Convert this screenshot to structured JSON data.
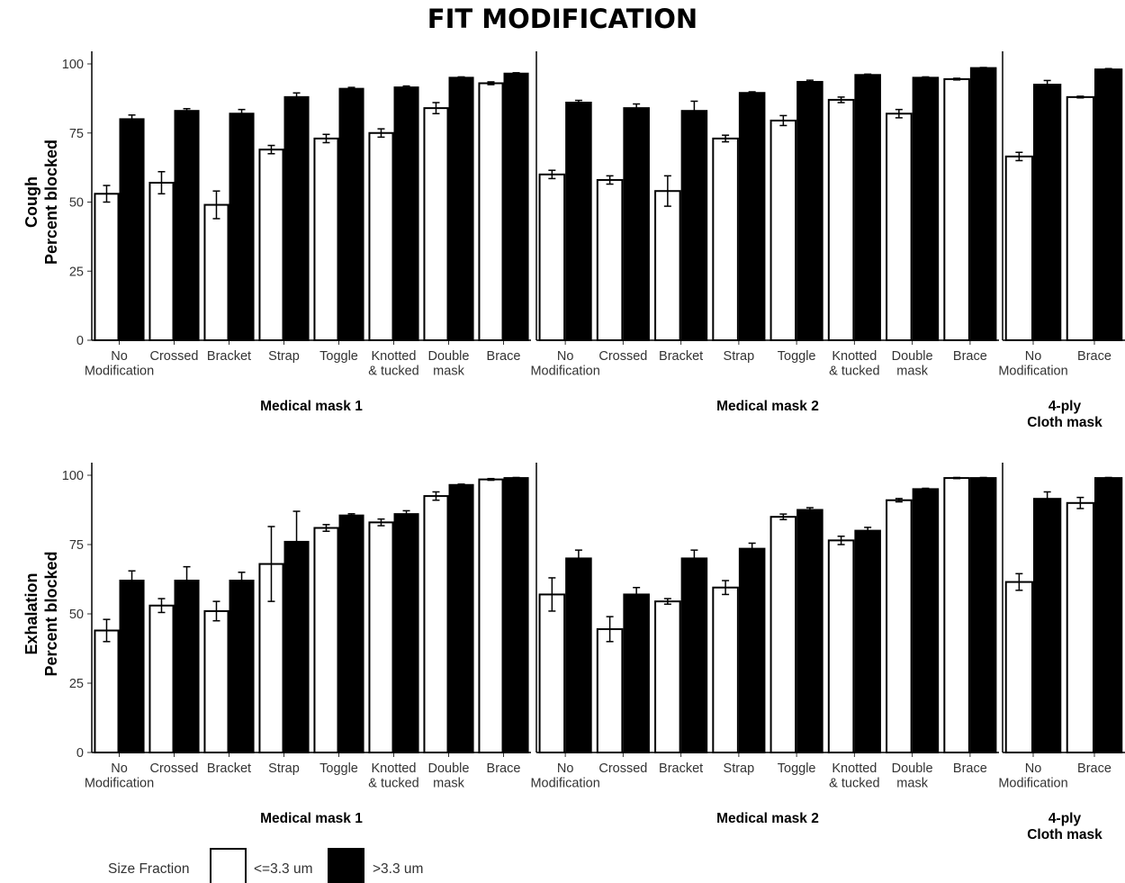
{
  "title": "FIT MODIFICATION",
  "legend": {
    "title": "Size Fraction",
    "items": [
      {
        "label": "<=3.3 um",
        "color": "#ffffff"
      },
      {
        "label": ">3.3 um",
        "color": "#000000"
      }
    ]
  },
  "chart_data": [
    {
      "type": "bar",
      "ylabel": [
        "Cough",
        "Percent blocked"
      ],
      "ylim": [
        0,
        100
      ],
      "yticks": [
        0,
        25,
        50,
        75,
        100
      ],
      "series_names": [
        "<=3.3 um",
        ">3.3 um"
      ],
      "groups": [
        {
          "name": [
            "Medical mask 1"
          ],
          "categories": [
            [
              "No",
              "Modification"
            ],
            [
              "Crossed"
            ],
            [
              "Bracket"
            ],
            [
              "Strap"
            ],
            [
              "Toggle"
            ],
            [
              "Knotted",
              "& tucked"
            ],
            [
              "Double",
              "mask"
            ],
            [
              "Brace"
            ]
          ],
          "small": [
            53,
            57,
            49,
            69,
            73,
            75,
            84,
            93
          ],
          "small_err": [
            3,
            4,
            5,
            1.5,
            1.5,
            1.5,
            2,
            0.5
          ],
          "large": [
            80,
            83,
            82,
            88,
            91,
            91.5,
            95,
            96.5
          ],
          "large_err": [
            1.5,
            0.8,
            1.5,
            1.5,
            0.5,
            0.5,
            0.3,
            0.3
          ]
        },
        {
          "name": [
            "Medical mask 2"
          ],
          "categories": [
            [
              "No",
              "Modification"
            ],
            [
              "Crossed"
            ],
            [
              "Bracket"
            ],
            [
              "Strap"
            ],
            [
              "Toggle"
            ],
            [
              "Knotted",
              "& tucked"
            ],
            [
              "Double",
              "mask"
            ],
            [
              "Brace"
            ]
          ],
          "small": [
            60,
            58,
            54,
            73,
            79.5,
            87,
            82,
            94.5
          ],
          "small_err": [
            1.5,
            1.5,
            5.5,
            1.2,
            1.8,
            1,
            1.5,
            0.3
          ],
          "large": [
            86,
            84,
            83,
            89.5,
            93.5,
            96,
            95,
            98.5
          ],
          "large_err": [
            0.8,
            1.5,
            3.5,
            0.4,
            0.6,
            0.3,
            0.3,
            0.2
          ]
        },
        {
          "name": [
            "4-ply",
            "Cloth mask"
          ],
          "categories": [
            [
              "No",
              "Modification"
            ],
            [
              "Brace"
            ]
          ],
          "small": [
            66.5,
            88
          ],
          "small_err": [
            1.5,
            0.3
          ],
          "large": [
            92.5,
            98
          ],
          "large_err": [
            1.5,
            0.3
          ]
        }
      ]
    },
    {
      "type": "bar",
      "ylabel": [
        "Exhalation",
        "Percent blocked"
      ],
      "ylim": [
        0,
        100
      ],
      "yticks": [
        0,
        25,
        50,
        75,
        100
      ],
      "series_names": [
        "<=3.3 um",
        ">3.3 um"
      ],
      "groups": [
        {
          "name": [
            "Medical mask 1"
          ],
          "categories": [
            [
              "No",
              "Modification"
            ],
            [
              "Crossed"
            ],
            [
              "Bracket"
            ],
            [
              "Strap"
            ],
            [
              "Toggle"
            ],
            [
              "Knotted",
              "& tucked"
            ],
            [
              "Double",
              "mask"
            ],
            [
              "Brace"
            ]
          ],
          "small": [
            44,
            53,
            51,
            68,
            81,
            83,
            92.5,
            98.5
          ],
          "small_err": [
            4,
            2.5,
            3.5,
            13.5,
            1.2,
            1.2,
            1.5,
            0.3
          ],
          "large": [
            62,
            62,
            62,
            76,
            85.5,
            86,
            96.5,
            99
          ],
          "large_err": [
            3.5,
            5,
            3,
            11,
            0.6,
            1.2,
            0.3,
            0.2
          ]
        },
        {
          "name": [
            "Medical mask 2"
          ],
          "categories": [
            [
              "No",
              "Modification"
            ],
            [
              "Crossed"
            ],
            [
              "Bracket"
            ],
            [
              "Strap"
            ],
            [
              "Toggle"
            ],
            [
              "Knotted",
              "& tucked"
            ],
            [
              "Double",
              "mask"
            ],
            [
              "Brace"
            ]
          ],
          "small": [
            57,
            44.5,
            54.5,
            59.5,
            85,
            76.5,
            91,
            99
          ],
          "small_err": [
            6,
            4.5,
            1,
            2.5,
            1,
            1.5,
            0.6,
            0.2
          ],
          "large": [
            70,
            57,
            70,
            73.5,
            87.5,
            80,
            95,
            99
          ],
          "large_err": [
            3,
            2.5,
            3,
            2,
            0.8,
            1.2,
            0.3,
            0.2
          ]
        },
        {
          "name": [
            "4-ply",
            "Cloth mask"
          ],
          "categories": [
            [
              "No",
              "Modification"
            ],
            [
              "Brace"
            ]
          ],
          "small": [
            61.5,
            90
          ],
          "small_err": [
            3,
            2
          ],
          "large": [
            91.5,
            99
          ],
          "large_err": [
            2.5,
            0.2
          ]
        }
      ]
    }
  ]
}
